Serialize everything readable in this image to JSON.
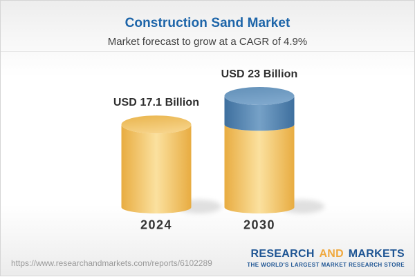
{
  "header": {
    "title": "Construction Sand Market",
    "subtitle": "Market forecast to grow at a CAGR of 4.9%",
    "title_color": "#1D65A9"
  },
  "chart_data": {
    "type": "bar",
    "variant": "3d-cylinder",
    "title": "Construction Sand Market",
    "subtitle": "Market forecast to grow at a CAGR of 4.9%",
    "categories": [
      "2024",
      "2030"
    ],
    "values": [
      17.1,
      23
    ],
    "value_labels": [
      "USD 17.1 Billion",
      "USD 23 Billion"
    ],
    "unit": "USD Billion",
    "cagr_percent": 4.9,
    "growth_segment": {
      "category": "2030",
      "from": 17.1,
      "to": 23
    },
    "legend": "none",
    "grid": false,
    "colors": {
      "bar_body_edge": "#E8AC41",
      "bar_body_mid": "#FBE19F",
      "bar_top_start": "#E9B44C",
      "bar_top_end": "#F6D287",
      "growth_body_edge": "#3E6F9E",
      "growth_body_mid": "#76A1C7",
      "growth_top_start": "#6290B8",
      "growth_top_end": "#7EA7CC"
    }
  },
  "footer": {
    "url": "https://www.researchandmarkets.com/reports/6102289",
    "logo": {
      "word1": "RESEARCH",
      "word2": "AND",
      "word3": "MARKETS",
      "tagline": "THE WORLD'S LARGEST MARKET RESEARCH STORE",
      "blue": "#1D5493",
      "gold": "#F0A83D"
    }
  }
}
